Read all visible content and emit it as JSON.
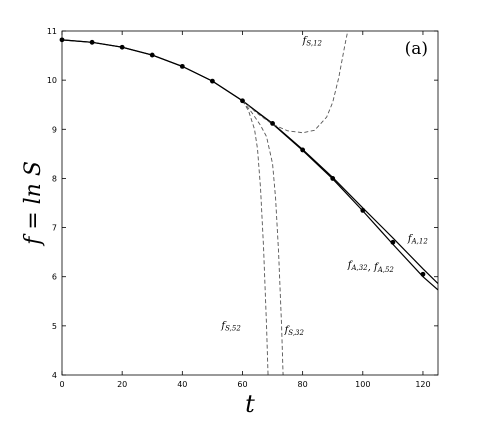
{
  "chart_data": {
    "type": "line",
    "panel_label": "(a)",
    "xlabel": "t",
    "ylabel": "f = ln S",
    "xlim": [
      0,
      125
    ],
    "ylim": [
      4,
      11
    ],
    "xticks": [
      0,
      20,
      40,
      60,
      80,
      100,
      120
    ],
    "yticks": [
      4,
      5,
      6,
      7,
      8,
      9,
      10,
      11
    ],
    "grid": false,
    "points": {
      "x": [
        0,
        10,
        20,
        30,
        40,
        50,
        60,
        70,
        80,
        90,
        100,
        110,
        120
      ],
      "y": [
        10.82,
        10.77,
        10.67,
        10.51,
        10.28,
        9.98,
        9.58,
        9.12,
        8.58,
        8.0,
        7.35,
        6.7,
        6.05
      ]
    },
    "series": [
      {
        "name": "f_{A,12}",
        "style": "solid",
        "x": [
          0,
          10,
          20,
          30,
          40,
          50,
          60,
          70,
          80,
          90,
          100,
          110,
          120,
          125
        ],
        "y": [
          10.82,
          10.77,
          10.67,
          10.51,
          10.28,
          9.98,
          9.58,
          9.12,
          8.59,
          8.02,
          7.4,
          6.79,
          6.16,
          5.86
        ]
      },
      {
        "name": "f_{A,32}, f_{A,52}",
        "style": "solid",
        "x": [
          0,
          10,
          20,
          30,
          40,
          50,
          60,
          70,
          80,
          90,
          100,
          110,
          120,
          125
        ],
        "y": [
          10.82,
          10.77,
          10.67,
          10.51,
          10.28,
          9.98,
          9.58,
          9.11,
          8.57,
          7.99,
          7.34,
          6.66,
          6.0,
          5.73
        ]
      },
      {
        "name": "f_{S,12}",
        "style": "dashed",
        "x": [
          60,
          65,
          70,
          75,
          80,
          84,
          88,
          90,
          92,
          94,
          95
        ],
        "y": [
          9.58,
          9.32,
          9.1,
          8.97,
          8.93,
          8.98,
          9.25,
          9.55,
          10.05,
          10.7,
          11.0
        ]
      },
      {
        "name": "f_{S,52}",
        "style": "dashed",
        "x": [
          60,
          62,
          64,
          65,
          66,
          67,
          68,
          68.5
        ],
        "y": [
          9.58,
          9.38,
          9.0,
          8.6,
          7.8,
          6.6,
          5.0,
          4.0
        ]
      },
      {
        "name": "f_{S,32}",
        "style": "dashed",
        "x": [
          60,
          63,
          66,
          68,
          70,
          71,
          72,
          73,
          73.5
        ],
        "y": [
          9.58,
          9.35,
          9.08,
          8.85,
          8.3,
          7.6,
          6.5,
          5.0,
          4.0
        ]
      }
    ],
    "annotations": [
      {
        "base": "f",
        "sub": "S,12",
        "x": 80,
        "y": 10.75
      },
      {
        "base": "f",
        "sub": "A,12",
        "x": 115,
        "y": 6.72
      },
      {
        "base": "f",
        "sub": "A,32",
        "sep": ", ",
        "base2": "f",
        "sub2": "A,52",
        "x": 95,
        "y": 6.18
      },
      {
        "base": "f",
        "sub": "S,52",
        "x": 53,
        "y": 4.95
      },
      {
        "base": "f",
        "sub": "S,32",
        "x": 74,
        "y": 4.85
      }
    ]
  }
}
